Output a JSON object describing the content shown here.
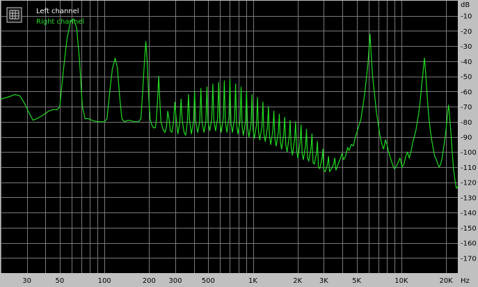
{
  "colors": {
    "plot_bg": "#000000",
    "frame_bg": "#c0c0c0",
    "grid": "#7a7a7a",
    "left_channel": "#ffffff",
    "right_channel": "#22dd22",
    "tick_text": "#000000"
  },
  "chart_data": {
    "type": "line",
    "x_scale": "log",
    "xlim": [
      20,
      24000
    ],
    "ylim": [
      -180,
      0
    ],
    "ylabel": "dB",
    "xunit": "Hz",
    "grid": true,
    "legend_placement": "top-left",
    "x_tick_labels": [
      {
        "value": 30,
        "label": "30"
      },
      {
        "value": 50,
        "label": "50"
      },
      {
        "value": 100,
        "label": "100"
      },
      {
        "value": 200,
        "label": "200"
      },
      {
        "value": 300,
        "label": "300"
      },
      {
        "value": 500,
        "label": "500"
      },
      {
        "value": 1000,
        "label": "1K"
      },
      {
        "value": 2000,
        "label": "2K"
      },
      {
        "value": 3000,
        "label": "3K"
      },
      {
        "value": 5000,
        "label": "5K"
      },
      {
        "value": 10000,
        "label": "10K"
      },
      {
        "value": 20000,
        "label": "20K"
      }
    ],
    "x_grid": [
      20,
      30,
      40,
      50,
      60,
      70,
      80,
      90,
      100,
      200,
      300,
      400,
      500,
      600,
      700,
      800,
      900,
      1000,
      2000,
      3000,
      4000,
      5000,
      6000,
      7000,
      8000,
      9000,
      10000,
      20000
    ],
    "y_ticks": [
      -10,
      -20,
      -30,
      -40,
      -50,
      -60,
      -70,
      -80,
      -90,
      -100,
      -110,
      -120,
      -130,
      -140,
      -150,
      -160,
      -170
    ],
    "series": [
      {
        "name": "Left channel",
        "color": "#ffffff",
        "points": []
      },
      {
        "name": "Right channel",
        "color": "#22dd22",
        "points": [
          [
            20,
            -65
          ],
          [
            22,
            -64
          ],
          [
            25,
            -62
          ],
          [
            27,
            -63
          ],
          [
            29,
            -68
          ],
          [
            31,
            -74
          ],
          [
            33,
            -79
          ],
          [
            35,
            -78
          ],
          [
            38,
            -76
          ],
          [
            42,
            -73
          ],
          [
            45,
            -72
          ],
          [
            48,
            -72
          ],
          [
            50,
            -70
          ],
          [
            53,
            -45
          ],
          [
            56,
            -25
          ],
          [
            59,
            -14
          ],
          [
            62,
            -12
          ],
          [
            65,
            -18
          ],
          [
            68,
            -40
          ],
          [
            71,
            -70
          ],
          [
            74,
            -78
          ],
          [
            78,
            -78
          ],
          [
            82,
            -79
          ],
          [
            90,
            -80
          ],
          [
            100,
            -80
          ],
          [
            104,
            -78
          ],
          [
            108,
            -62
          ],
          [
            113,
            -45
          ],
          [
            118,
            -38
          ],
          [
            122,
            -44
          ],
          [
            127,
            -65
          ],
          [
            131,
            -78
          ],
          [
            136,
            -80
          ],
          [
            145,
            -79
          ],
          [
            160,
            -80
          ],
          [
            170,
            -80
          ],
          [
            176,
            -78
          ],
          [
            181,
            -60
          ],
          [
            186,
            -40
          ],
          [
            190,
            -27
          ],
          [
            194,
            -40
          ],
          [
            199,
            -65
          ],
          [
            203,
            -78
          ],
          [
            208,
            -82
          ],
          [
            214,
            -84
          ],
          [
            220,
            -84
          ],
          [
            223,
            -80
          ],
          [
            228,
            -65
          ],
          [
            232,
            -50
          ],
          [
            236,
            -66
          ],
          [
            240,
            -80
          ],
          [
            248,
            -85
          ],
          [
            256,
            -87
          ],
          [
            262,
            -83
          ],
          [
            267,
            -73
          ],
          [
            272,
            -78
          ],
          [
            278,
            -86
          ],
          [
            285,
            -87
          ],
          [
            292,
            -80
          ],
          [
            298,
            -67
          ],
          [
            304,
            -78
          ],
          [
            312,
            -88
          ],
          [
            322,
            -80
          ],
          [
            328,
            -65
          ],
          [
            334,
            -79
          ],
          [
            344,
            -87
          ],
          [
            352,
            -89
          ],
          [
            362,
            -80
          ],
          [
            368,
            -62
          ],
          [
            374,
            -79
          ],
          [
            385,
            -88
          ],
          [
            398,
            -80
          ],
          [
            405,
            -60
          ],
          [
            412,
            -80
          ],
          [
            425,
            -87
          ],
          [
            438,
            -80
          ],
          [
            446,
            -58
          ],
          [
            454,
            -80
          ],
          [
            468,
            -87
          ],
          [
            482,
            -80
          ],
          [
            490,
            -57
          ],
          [
            498,
            -80
          ],
          [
            512,
            -86
          ],
          [
            528,
            -78
          ],
          [
            537,
            -55
          ],
          [
            546,
            -79
          ],
          [
            560,
            -86
          ],
          [
            578,
            -78
          ],
          [
            588,
            -54
          ],
          [
            598,
            -80
          ],
          [
            612,
            -87
          ],
          [
            632,
            -77
          ],
          [
            642,
            -53
          ],
          [
            652,
            -80
          ],
          [
            668,
            -87
          ],
          [
            690,
            -77
          ],
          [
            700,
            -52
          ],
          [
            712,
            -81
          ],
          [
            728,
            -87
          ],
          [
            752,
            -78
          ],
          [
            764,
            -55
          ],
          [
            776,
            -82
          ],
          [
            792,
            -88
          ],
          [
            820,
            -79
          ],
          [
            832,
            -57
          ],
          [
            846,
            -83
          ],
          [
            862,
            -89
          ],
          [
            892,
            -80
          ],
          [
            906,
            -60
          ],
          [
            920,
            -84
          ],
          [
            940,
            -90
          ],
          [
            972,
            -81
          ],
          [
            986,
            -62
          ],
          [
            1002,
            -85
          ],
          [
            1022,
            -91
          ],
          [
            1058,
            -82
          ],
          [
            1074,
            -64
          ],
          [
            1090,
            -86
          ],
          [
            1112,
            -92
          ],
          [
            1150,
            -83
          ],
          [
            1168,
            -67
          ],
          [
            1186,
            -88
          ],
          [
            1210,
            -93
          ],
          [
            1252,
            -84
          ],
          [
            1272,
            -70
          ],
          [
            1292,
            -89
          ],
          [
            1318,
            -95
          ],
          [
            1362,
            -86
          ],
          [
            1384,
            -73
          ],
          [
            1406,
            -91
          ],
          [
            1434,
            -96
          ],
          [
            1482,
            -87
          ],
          [
            1506,
            -75
          ],
          [
            1530,
            -93
          ],
          [
            1560,
            -98
          ],
          [
            1612,
            -88
          ],
          [
            1638,
            -77
          ],
          [
            1664,
            -95
          ],
          [
            1698,
            -100
          ],
          [
            1754,
            -90
          ],
          [
            1782,
            -79
          ],
          [
            1810,
            -97
          ],
          [
            1846,
            -102
          ],
          [
            1908,
            -92
          ],
          [
            1940,
            -80
          ],
          [
            1972,
            -99
          ],
          [
            2008,
            -104
          ],
          [
            2076,
            -94
          ],
          [
            2110,
            -82
          ],
          [
            2146,
            -101
          ],
          [
            2186,
            -105
          ],
          [
            2260,
            -96
          ],
          [
            2296,
            -85
          ],
          [
            2334,
            -104
          ],
          [
            2378,
            -106
          ],
          [
            2460,
            -98
          ],
          [
            2500,
            -88
          ],
          [
            2540,
            -107
          ],
          [
            2590,
            -108
          ],
          [
            2680,
            -101
          ],
          [
            2720,
            -93
          ],
          [
            2760,
            -110
          ],
          [
            2820,
            -111
          ],
          [
            2920,
            -104
          ],
          [
            2960,
            -98
          ],
          [
            3000,
            -112
          ],
          [
            3070,
            -113
          ],
          [
            3180,
            -108
          ],
          [
            3230,
            -103
          ],
          [
            3280,
            -113
          ],
          [
            3380,
            -111
          ],
          [
            3500,
            -108
          ],
          [
            3560,
            -104
          ],
          [
            3620,
            -112
          ],
          [
            3750,
            -108
          ],
          [
            3900,
            -104
          ],
          [
            3980,
            -101
          ],
          [
            4080,
            -105
          ],
          [
            4200,
            -103
          ],
          [
            4350,
            -97
          ],
          [
            4450,
            -99
          ],
          [
            4600,
            -95
          ],
          [
            4750,
            -96
          ],
          [
            4900,
            -90
          ],
          [
            5050,
            -86
          ],
          [
            5200,
            -82
          ],
          [
            5350,
            -78
          ],
          [
            5500,
            -70
          ],
          [
            5650,
            -62
          ],
          [
            5800,
            -52
          ],
          [
            5950,
            -42
          ],
          [
            6050,
            -32
          ],
          [
            6150,
            -22
          ],
          [
            6250,
            -34
          ],
          [
            6400,
            -50
          ],
          [
            6600,
            -62
          ],
          [
            6800,
            -74
          ],
          [
            7000,
            -82
          ],
          [
            7200,
            -90
          ],
          [
            7400,
            -95
          ],
          [
            7600,
            -98
          ],
          [
            7800,
            -92
          ],
          [
            8000,
            -95
          ],
          [
            8200,
            -100
          ],
          [
            8450,
            -104
          ],
          [
            8700,
            -108
          ],
          [
            8950,
            -111
          ],
          [
            9200,
            -110
          ],
          [
            9500,
            -107
          ],
          [
            9800,
            -104
          ],
          [
            10100,
            -110
          ],
          [
            10400,
            -108
          ],
          [
            10700,
            -103
          ],
          [
            11000,
            -100
          ],
          [
            11300,
            -104
          ],
          [
            11600,
            -100
          ],
          [
            11900,
            -94
          ],
          [
            12200,
            -90
          ],
          [
            12500,
            -86
          ],
          [
            12800,
            -80
          ],
          [
            13100,
            -74
          ],
          [
            13400,
            -66
          ],
          [
            13700,
            -56
          ],
          [
            14000,
            -47
          ],
          [
            14300,
            -38
          ],
          [
            14600,
            -48
          ],
          [
            14900,
            -62
          ],
          [
            15200,
            -74
          ],
          [
            15600,
            -84
          ],
          [
            16000,
            -92
          ],
          [
            16400,
            -98
          ],
          [
            16800,
            -103
          ],
          [
            17200,
            -105
          ],
          [
            17600,
            -108
          ],
          [
            18000,
            -110
          ],
          [
            18400,
            -108
          ],
          [
            18800,
            -104
          ],
          [
            19200,
            -98
          ],
          [
            19600,
            -92
          ],
          [
            20000,
            -85
          ],
          [
            20400,
            -76
          ],
          [
            20800,
            -69
          ],
          [
            21200,
            -78
          ],
          [
            21600,
            -88
          ],
          [
            22000,
            -100
          ],
          [
            22500,
            -112
          ],
          [
            23000,
            -119
          ],
          [
            23500,
            -124
          ],
          [
            24000,
            -123
          ]
        ]
      }
    ]
  }
}
